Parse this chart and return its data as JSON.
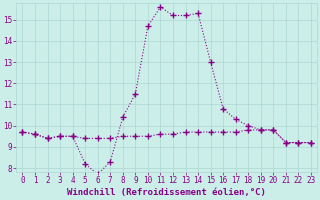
{
  "hours": [
    0,
    1,
    2,
    3,
    4,
    5,
    6,
    7,
    8,
    9,
    10,
    11,
    12,
    13,
    14,
    15,
    16,
    17,
    18,
    19,
    20,
    21,
    22,
    23
  ],
  "temp_line": [
    9.7,
    9.6,
    9.4,
    9.5,
    9.5,
    9.4,
    9.4,
    9.4,
    9.5,
    9.5,
    9.5,
    9.6,
    9.6,
    9.7,
    9.7,
    9.7,
    9.7,
    9.7,
    9.8,
    9.8,
    9.8,
    9.2,
    9.2,
    9.2
  ],
  "windchill_line": [
    9.7,
    9.6,
    9.4,
    9.5,
    9.5,
    8.2,
    7.7,
    8.3,
    10.4,
    11.5,
    14.7,
    15.6,
    15.2,
    15.2,
    15.3,
    13.0,
    10.8,
    10.3,
    10.0,
    9.8,
    9.8,
    9.2,
    9.2,
    9.2
  ],
  "bg_color": "#cceee8",
  "grid_color": "#aad8d0",
  "line_color": "#880088",
  "marker": "+",
  "linewidth": 0.8,
  "markersize": 4,
  "markeredgewidth": 1.0,
  "xlim": [
    -0.5,
    23.5
  ],
  "ylim": [
    7.8,
    15.8
  ],
  "yticks": [
    8,
    9,
    10,
    11,
    12,
    13,
    14,
    15
  ],
  "xticks": [
    0,
    1,
    2,
    3,
    4,
    5,
    6,
    7,
    8,
    9,
    10,
    11,
    12,
    13,
    14,
    15,
    16,
    17,
    18,
    19,
    20,
    21,
    22,
    23
  ],
  "xlabel": "Windchill (Refroidissement éolien,°C)",
  "tick_fontsize": 5.5,
  "label_fontsize": 6.5,
  "tick_color": "#880088",
  "label_color": "#880088"
}
